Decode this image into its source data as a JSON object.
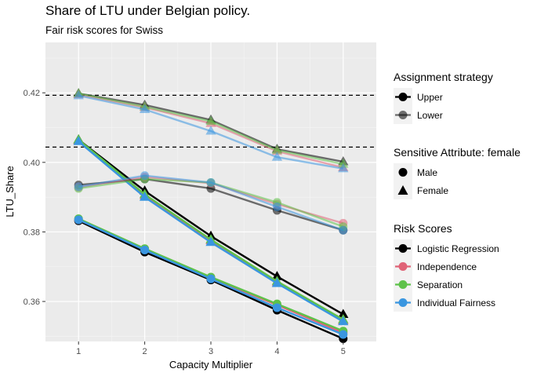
{
  "chart_data": {
    "type": "line",
    "title": "Share of LTU under Belgian policy.",
    "subtitle": "Fair risk scores for Swiss",
    "xlabel": "Capacity Multiplier",
    "ylabel": "LTU_Share",
    "x": [
      1,
      2,
      3,
      4,
      5
    ],
    "xticks": [
      "1",
      "2",
      "3",
      "4",
      "5"
    ],
    "yticks": [
      "0.36",
      "0.38",
      "0.40",
      "0.42"
    ],
    "ylim": [
      0.3485,
      0.4345
    ],
    "xlim": [
      0.5,
      5.5
    ],
    "hlines": [
      0.4193,
      0.4044
    ],
    "colors": {
      "Logistic Regression": "#000000",
      "Independence": "#e06377",
      "Separation": "#5ec24a",
      "Individual Fairness": "#3a96e0"
    },
    "series": [
      {
        "risk": "Logistic Regression",
        "strategy": "Upper",
        "attribute": "Male",
        "values": [
          0.3832,
          0.3742,
          0.3662,
          0.3575,
          0.3493
        ]
      },
      {
        "risk": "Independence",
        "strategy": "Upper",
        "attribute": "Male",
        "values": [
          0.3835,
          0.375,
          0.3668,
          0.359,
          0.351
        ]
      },
      {
        "risk": "Separation",
        "strategy": "Upper",
        "attribute": "Male",
        "values": [
          0.3838,
          0.3752,
          0.367,
          0.3593,
          0.3515
        ]
      },
      {
        "risk": "Individual Fairness",
        "strategy": "Upper",
        "attribute": "Male",
        "values": [
          0.3835,
          0.3748,
          0.3665,
          0.3582,
          0.3505
        ]
      },
      {
        "risk": "Logistic Regression",
        "strategy": "Upper",
        "attribute": "Female",
        "values": [
          0.4065,
          0.3918,
          0.3788,
          0.3672,
          0.3563
        ]
      },
      {
        "risk": "Independence",
        "strategy": "Upper",
        "attribute": "Female",
        "values": [
          0.4062,
          0.3905,
          0.3775,
          0.3655,
          0.3545
        ]
      },
      {
        "risk": "Separation",
        "strategy": "Upper",
        "attribute": "Female",
        "values": [
          0.4065,
          0.3908,
          0.3778,
          0.3658,
          0.3548
        ]
      },
      {
        "risk": "Individual Fairness",
        "strategy": "Upper",
        "attribute": "Female",
        "values": [
          0.406,
          0.39,
          0.377,
          0.3652,
          0.3542
        ]
      },
      {
        "risk": "Logistic Regression",
        "strategy": "Lower",
        "attribute": "Male",
        "values": [
          0.3935,
          0.3952,
          0.3925,
          0.3862,
          0.3805
        ]
      },
      {
        "risk": "Independence",
        "strategy": "Lower",
        "attribute": "Male",
        "values": [
          0.3928,
          0.3958,
          0.394,
          0.388,
          0.3825
        ]
      },
      {
        "risk": "Separation",
        "strategy": "Lower",
        "attribute": "Male",
        "values": [
          0.3925,
          0.3952,
          0.3942,
          0.3885,
          0.3815
        ]
      },
      {
        "risk": "Individual Fairness",
        "strategy": "Lower",
        "attribute": "Male",
        "values": [
          0.393,
          0.3962,
          0.3942,
          0.3872,
          0.3805
        ]
      },
      {
        "risk": "Logistic Regression",
        "strategy": "Lower",
        "attribute": "Female",
        "values": [
          0.4198,
          0.4165,
          0.4122,
          0.4038,
          0.4002
        ]
      },
      {
        "risk": "Independence",
        "strategy": "Lower",
        "attribute": "Female",
        "values": [
          0.4195,
          0.4158,
          0.4112,
          0.4032,
          0.3985
        ]
      },
      {
        "risk": "Separation",
        "strategy": "Lower",
        "attribute": "Female",
        "values": [
          0.4198,
          0.416,
          0.4118,
          0.4035,
          0.3995
        ]
      },
      {
        "risk": "Individual Fairness",
        "strategy": "Lower",
        "attribute": "Female",
        "values": [
          0.4192,
          0.4152,
          0.409,
          0.4015,
          0.3982
        ]
      }
    ],
    "legend_placement": "right"
  },
  "legend": {
    "strategy_title": "Assignment strategy",
    "strategy_items": [
      "Upper",
      "Lower"
    ],
    "attribute_title": "Sensitive Attribute: female",
    "attribute_items": [
      "Male",
      "Female"
    ],
    "risk_title": "Risk Scores",
    "risk_items": [
      "Logistic Regression",
      "Independence",
      "Separation",
      "Individual Fairness"
    ]
  }
}
